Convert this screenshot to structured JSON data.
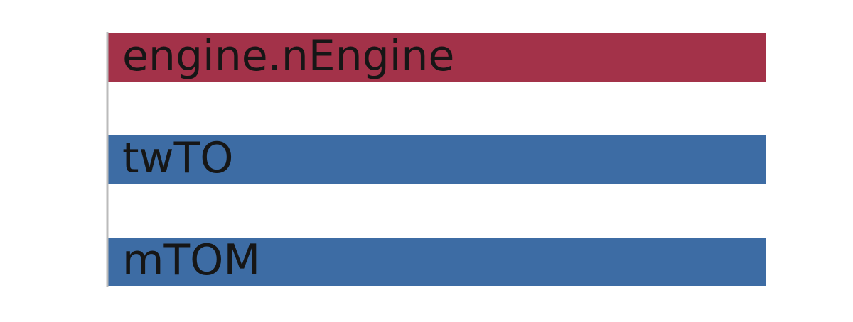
{
  "chart_data": {
    "type": "bar",
    "orientation": "horizontal",
    "categories": [
      "engine.nEngine",
      "twTO",
      "mTOM"
    ],
    "values": [
      1,
      1,
      1
    ],
    "colors": [
      "#a33249",
      "#3d6ca4",
      "#3d6ca4"
    ],
    "xlim": [
      0,
      1
    ],
    "title": "",
    "xlabel": "",
    "ylabel": "",
    "grid": false,
    "legend": "none"
  }
}
